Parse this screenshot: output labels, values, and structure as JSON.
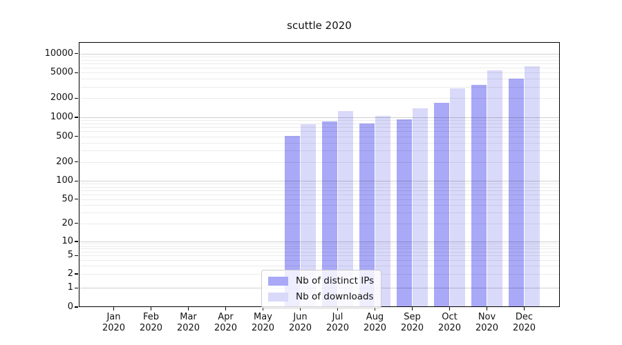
{
  "figure": {
    "background": "#ffffff"
  },
  "chart_data": {
    "type": "bar",
    "title": "scuttle 2020",
    "categories": [
      {
        "month": "Jan",
        "year": "2020"
      },
      {
        "month": "Feb",
        "year": "2020"
      },
      {
        "month": "Mar",
        "year": "2020"
      },
      {
        "month": "Apr",
        "year": "2020"
      },
      {
        "month": "May",
        "year": "2020"
      },
      {
        "month": "Jun",
        "year": "2020"
      },
      {
        "month": "Jul",
        "year": "2020"
      },
      {
        "month": "Aug",
        "year": "2020"
      },
      {
        "month": "Sep",
        "year": "2020"
      },
      {
        "month": "Oct",
        "year": "2020"
      },
      {
        "month": "Nov",
        "year": "2020"
      },
      {
        "month": "Dec",
        "year": "2020"
      }
    ],
    "series": [
      {
        "name": "Nb of distinct IPs",
        "color": "#a9a9f7",
        "values": [
          0,
          0,
          0,
          0,
          0,
          510,
          870,
          800,
          930,
          1680,
          3200,
          4050
        ]
      },
      {
        "name": "Nb of downloads",
        "color": "#d9d9fa",
        "values": [
          0,
          0,
          0,
          0,
          0,
          770,
          1260,
          1040,
          1390,
          2830,
          5500,
          6300
        ]
      }
    ],
    "yscale": "symlog",
    "ylim": [
      0,
      13000
    ],
    "yticks": [
      0,
      1,
      2,
      5,
      10,
      20,
      50,
      100,
      200,
      500,
      1000,
      2000,
      5000,
      10000
    ],
    "grid": true,
    "legend": {
      "position": "lower-center",
      "entries": [
        "Nb of distinct IPs",
        "Nb of downloads"
      ]
    }
  }
}
